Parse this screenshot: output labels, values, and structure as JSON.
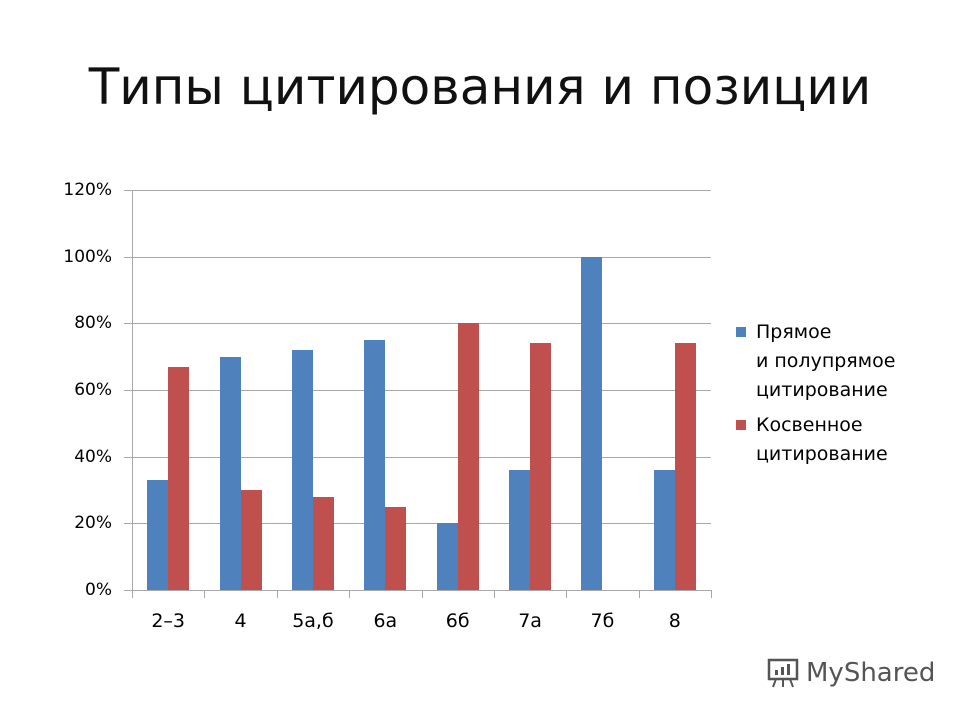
{
  "slide": {
    "title": "Типы цитирования и позиции"
  },
  "watermark": {
    "icon": "presentation-board-icon",
    "text": "MyShared"
  },
  "chart_data": {
    "type": "bar",
    "title": "Типы цитирования и позиции",
    "xlabel": "",
    "ylabel": "",
    "categories": [
      "2–3",
      "4",
      "5а,б",
      "6а",
      "6б",
      "7а",
      "7б",
      "8"
    ],
    "series": [
      {
        "name": "Прямое и полупрямое цитирование",
        "color": "#4f81bd",
        "values": [
          33,
          70,
          72,
          75,
          20,
          36,
          100,
          36
        ]
      },
      {
        "name": "Косвенное цитирование",
        "color": "#c0504d",
        "values": [
          67,
          30,
          28,
          25,
          80,
          74,
          0,
          74
        ]
      }
    ],
    "ylim": [
      0,
      120
    ],
    "yticks": [
      "0%",
      "20%",
      "40%",
      "60%",
      "80%",
      "100%",
      "120%"
    ],
    "grid": true,
    "legend_position": "right",
    "legend": [
      {
        "lines": [
          "Прямое",
          "и полупрямое",
          "цитирование"
        ]
      },
      {
        "lines": [
          "Косвенное",
          "цитирование"
        ]
      }
    ]
  }
}
